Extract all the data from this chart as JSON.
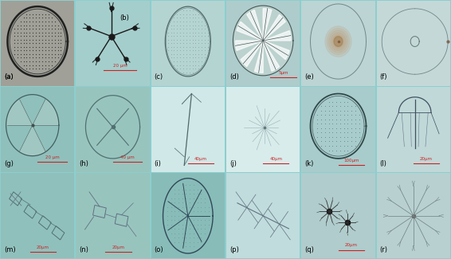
{
  "figsize": [
    5.66,
    3.25
  ],
  "dpi": 100,
  "fig_bg": "#8ccece",
  "labels": [
    "(a)",
    "(b)",
    "(c)",
    "(d)",
    "(e)",
    "(f)",
    "(g)",
    "(h)",
    "(i)",
    "(j)",
    "(k)",
    "(l)",
    "(m)",
    "(n)",
    "(o)",
    "(p)",
    "(q)",
    "(r)"
  ],
  "nrows": 3,
  "ncols": 6,
  "panel_bgs": [
    [
      "#a8a8a0",
      "#a0cccc",
      "#b0d4d4",
      "#b0cccc",
      "#b8d4d4",
      "#c0d8d8"
    ],
    [
      "#90c0bc",
      "#98c4be",
      "#d0e8e8",
      "#d8ecec",
      "#a8cccc",
      "#c0d8d8"
    ],
    [
      "#90c0bc",
      "#98c4be",
      "#88bcb8",
      "#c0dcdc",
      "#b0cccc",
      "#b8d0d0"
    ]
  ],
  "label_fs": 6,
  "scalebar_color": "#cc2222"
}
